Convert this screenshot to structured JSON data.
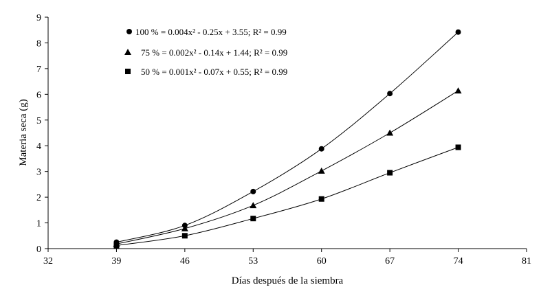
{
  "chart_data": {
    "type": "scatter",
    "title": "",
    "xlabel": "Días después de la siembra",
    "ylabel": "Materia seca (g)",
    "xlim": [
      32,
      81
    ],
    "ylim": [
      0,
      9
    ],
    "xticks": [
      "32",
      "39",
      "46",
      "53",
      "60",
      "67",
      "74",
      "81"
    ],
    "yticks": [
      "0",
      "1",
      "2",
      "3",
      "4",
      "5",
      "6",
      "7",
      "8",
      "9"
    ],
    "grid": false,
    "legend_position": "top-left",
    "series": [
      {
        "name": "100 % = 0.004x² - 0.25x + 3.55; R² = 0.99",
        "marker": "circle",
        "x": [
          39,
          46,
          53,
          60,
          67,
          74
        ],
        "y": [
          0.25,
          0.9,
          2.22,
          3.88,
          6.03,
          8.42
        ],
        "fit": [
          0.004,
          -0.25,
          3.55
        ]
      },
      {
        "name": "75 % = 0.002x² - 0.14x + 1.44; R² = 0.99",
        "marker": "triangle",
        "x": [
          39,
          46,
          53,
          60,
          67,
          74
        ],
        "y": [
          0.18,
          0.78,
          1.68,
          3.02,
          4.5,
          6.14
        ],
        "fit": [
          0.002,
          -0.14,
          1.44
        ]
      },
      {
        "name": "50 % = 0.001x² - 0.07x + 0.55; R² = 0.99",
        "marker": "square",
        "x": [
          39,
          46,
          53,
          60,
          67,
          74
        ],
        "y": [
          0.12,
          0.5,
          1.17,
          1.93,
          2.95,
          3.94
        ],
        "fit": [
          0.001,
          -0.07,
          0.55
        ]
      }
    ],
    "colors": {
      "ink": "#000000",
      "background": "#ffffff"
    }
  }
}
